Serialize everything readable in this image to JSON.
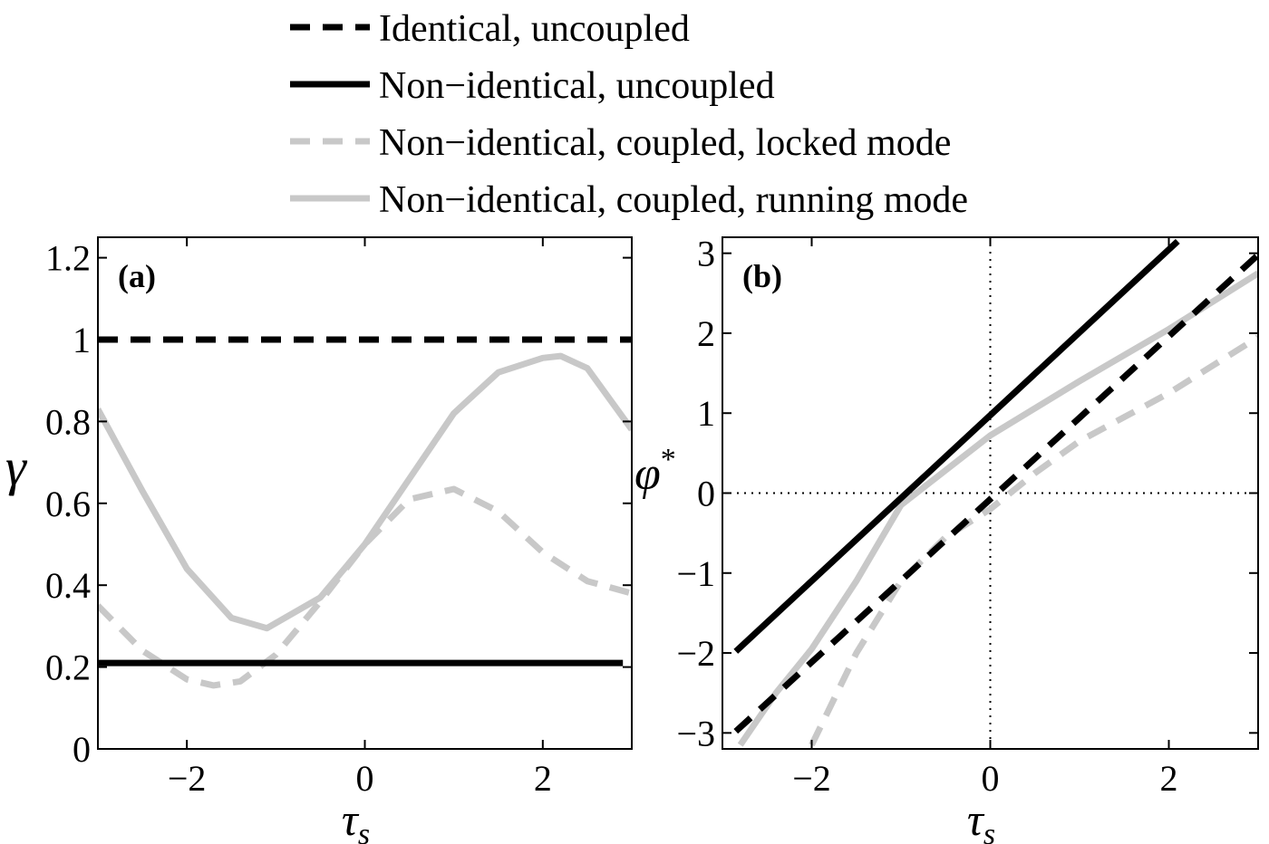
{
  "legend": {
    "entries": [
      {
        "label": "Identical, uncoupled",
        "color": "#000000",
        "dash": "dashed"
      },
      {
        "label": "Non−identical, uncoupled",
        "color": "#000000",
        "dash": "solid"
      },
      {
        "label": "Non−identical, coupled, locked mode",
        "color": "#c8c8c8",
        "dash": "dashed"
      },
      {
        "label": "Non−identical, coupled, running mode",
        "color": "#c8c8c8",
        "dash": "solid"
      }
    ]
  },
  "chart_data": [
    {
      "type": "line",
      "panel_label": "(a)",
      "xlabel": "τ",
      "xlabel_sub": "s",
      "ylabel": "γ",
      "ylabel_sup": "",
      "xlim": [
        -3,
        3
      ],
      "ylim": [
        0,
        1.25
      ],
      "xticks": [
        -2,
        0,
        2
      ],
      "xtick_labels": [
        "−2",
        "0",
        "2"
      ],
      "yticks": [
        0,
        0.2,
        0.4,
        0.6,
        0.8,
        1,
        1.2
      ],
      "ytick_labels": [
        "0",
        "0.2",
        "0.4",
        "0.6",
        "0.8",
        "1",
        "1.2"
      ],
      "grid": false,
      "series": [
        {
          "name": "Identical, uncoupled",
          "color": "#000000",
          "dash": "dashed",
          "x": [
            -3,
            3
          ],
          "y": [
            1.0,
            1.0
          ]
        },
        {
          "name": "Non−identical, uncoupled",
          "color": "#000000",
          "dash": "solid",
          "x": [
            -3,
            2.9
          ],
          "y": [
            0.21,
            0.21
          ]
        },
        {
          "name": "Non−identical, coupled, locked mode",
          "color": "#c8c8c8",
          "dash": "dashed",
          "x": [
            -3,
            -2.5,
            -2,
            -1.7,
            -1.4,
            -1,
            -0.5,
            0,
            0.5,
            1,
            1.5,
            2,
            2.5,
            3
          ],
          "y": [
            0.35,
            0.24,
            0.17,
            0.155,
            0.165,
            0.23,
            0.36,
            0.5,
            0.61,
            0.635,
            0.58,
            0.48,
            0.41,
            0.38
          ]
        },
        {
          "name": "Non−identical, coupled, running mode",
          "color": "#c8c8c8",
          "dash": "solid",
          "x": [
            -3,
            -2.5,
            -2,
            -1.5,
            -1.1,
            -0.5,
            0,
            0.5,
            1,
            1.5,
            2,
            2.2,
            2.5,
            3
          ],
          "y": [
            0.83,
            0.63,
            0.44,
            0.32,
            0.295,
            0.37,
            0.5,
            0.66,
            0.82,
            0.92,
            0.955,
            0.96,
            0.93,
            0.78
          ]
        }
      ]
    },
    {
      "type": "line",
      "panel_label": "(b)",
      "xlabel": "τ",
      "xlabel_sub": "s",
      "ylabel": "φ",
      "ylabel_sup": "*",
      "xlim": [
        -3,
        3
      ],
      "ylim": [
        -3.2,
        3.2
      ],
      "xticks": [
        -2,
        0,
        2
      ],
      "xtick_labels": [
        "−2",
        "0",
        "2"
      ],
      "yticks": [
        -3,
        -2,
        -1,
        0,
        1,
        2,
        3
      ],
      "ytick_labels": [
        "−3",
        "−2",
        "−1",
        "0",
        "1",
        "2",
        "3"
      ],
      "grid": false,
      "reference_lines": {
        "x0": true,
        "y0": true
      },
      "series": [
        {
          "name": "Identical, uncoupled",
          "color": "#000000",
          "dash": "dashed",
          "x": [
            -2.85,
            3
          ],
          "y": [
            -2.98,
            2.98
          ]
        },
        {
          "name": "Non−identical, uncoupled",
          "color": "#000000",
          "dash": "solid",
          "x": [
            -2.85,
            2.1
          ],
          "y": [
            -1.98,
            3.15
          ]
        },
        {
          "name": "Non−identical, coupled, locked mode",
          "color": "#c8c8c8",
          "dash": "dashed",
          "x": [
            -2,
            -1.5,
            -1,
            -0.5,
            0,
            0.5,
            1,
            1.5,
            2,
            2.5,
            3
          ],
          "y": [
            -3.15,
            -2.0,
            -1.1,
            -0.55,
            -0.2,
            0.25,
            0.65,
            0.95,
            1.25,
            1.6,
            1.95
          ]
        },
        {
          "name": "Non−identical, coupled, running mode",
          "color": "#c8c8c8",
          "dash": "solid",
          "x": [
            -2.8,
            -2.4,
            -2,
            -1.5,
            -1,
            0,
            1,
            2,
            3
          ],
          "y": [
            -3.15,
            -2.5,
            -1.95,
            -1.1,
            -0.15,
            0.72,
            1.4,
            2.05,
            2.75
          ]
        }
      ]
    }
  ]
}
